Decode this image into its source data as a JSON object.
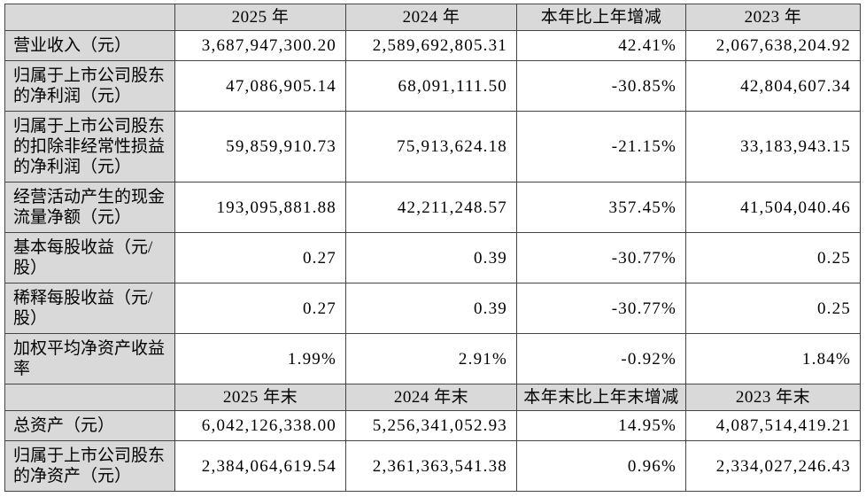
{
  "colors": {
    "header_shade": "#d9d9d9",
    "border": "#444444",
    "text": "#000000",
    "page_background": "#ffffff"
  },
  "table": {
    "rows": [
      {
        "kind": "header",
        "label": "",
        "values": [
          "2025 年",
          "2024 年",
          "本年比上年增减",
          "2023 年"
        ]
      },
      {
        "kind": "data",
        "label": "营业收入（元）",
        "values": [
          "3,687,947,300.20",
          "2,589,692,805.31",
          "42.41%",
          "2,067,638,204.92"
        ]
      },
      {
        "kind": "data",
        "label": "归属于上市公司股东的净利润（元）",
        "values": [
          "47,086,905.14",
          "68,091,111.50",
          "-30.85%",
          "42,804,607.34"
        ]
      },
      {
        "kind": "data",
        "label": "归属于上市公司股东的扣除非经常性损益的净利润（元）",
        "values": [
          "59,859,910.73",
          "75,913,624.18",
          "-21.15%",
          "33,183,943.15"
        ]
      },
      {
        "kind": "data",
        "label": "经营活动产生的现金流量净额（元）",
        "values": [
          "193,095,881.88",
          "42,211,248.57",
          "357.45%",
          "41,504,040.46"
        ]
      },
      {
        "kind": "data",
        "label": "基本每股收益（元/股）",
        "values": [
          "0.27",
          "0.39",
          "-30.77%",
          "0.25"
        ]
      },
      {
        "kind": "data",
        "label": "稀释每股收益（元/股）",
        "values": [
          "0.27",
          "0.39",
          "-30.77%",
          "0.25"
        ]
      },
      {
        "kind": "data",
        "label": "加权平均净资产收益率",
        "values": [
          "1.99%",
          "2.91%",
          "-0.92%",
          "1.84%"
        ]
      },
      {
        "kind": "header",
        "label": "",
        "values": [
          "2025 年末",
          "2024 年末",
          "本年末比上年末增减",
          "2023 年末"
        ]
      },
      {
        "kind": "data",
        "label": "总资产（元）",
        "values": [
          "6,042,126,338.00",
          "5,256,341,052.93",
          "14.95%",
          "4,087,514,419.21"
        ]
      },
      {
        "kind": "data",
        "label": "归属于上市公司股东的净资产（元）",
        "values": [
          "2,384,064,619.54",
          "2,361,363,541.38",
          "0.96%",
          "2,334,027,246.43"
        ]
      }
    ]
  }
}
